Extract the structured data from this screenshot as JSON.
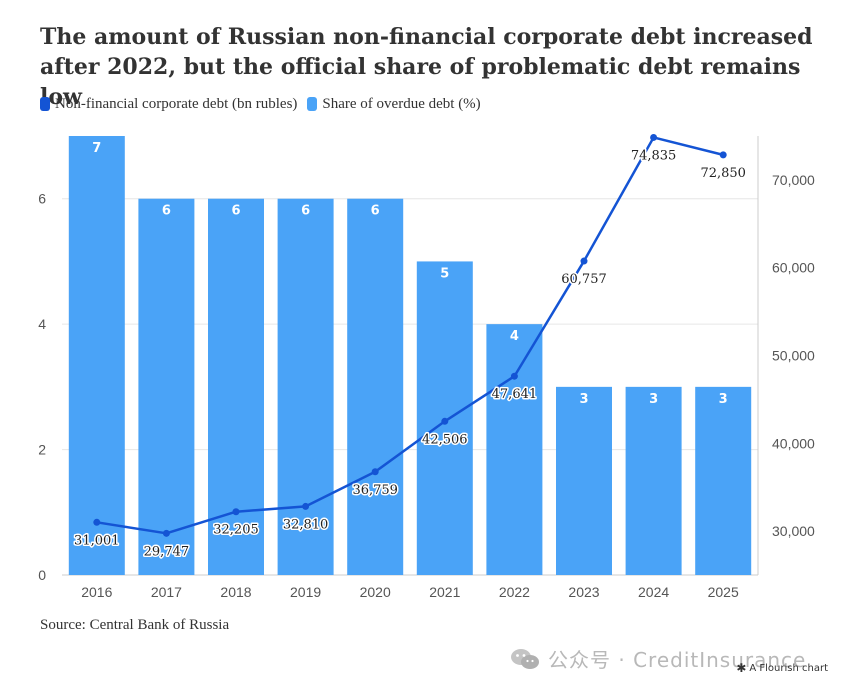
{
  "title": "The amount of Russian non-financial corporate debt increased after 2022, but the official share of problematic debt remains low",
  "source": "Source: Central Bank of Russia",
  "watermark": "公众号 · CreditInsurance",
  "credit": "A Flourish chart",
  "colors": {
    "line": "#1454d4",
    "bar": "#4aa3f7",
    "grid": "#e6e6e6"
  },
  "chart_data": {
    "type": "bar",
    "categories": [
      "2016",
      "2017",
      "2018",
      "2019",
      "2020",
      "2021",
      "2022",
      "2023",
      "2024",
      "2025"
    ],
    "series": [
      {
        "name": "Share of overdue debt (%)",
        "type": "bar",
        "axis": "left",
        "values": [
          7,
          6,
          6,
          6,
          6,
          5,
          4,
          3,
          3,
          3
        ],
        "labels": [
          "7",
          "6",
          "6",
          "6",
          "6",
          "5",
          "4",
          "3",
          "3",
          "3"
        ]
      },
      {
        "name": "Non-financial corporate debt (bn rubles)",
        "type": "line",
        "axis": "right",
        "values": [
          31001,
          29747,
          32205,
          32810,
          36759,
          42506,
          47641,
          60757,
          74835,
          72850
        ],
        "labels": [
          "31,001",
          "29,747",
          "32,205",
          "32,810",
          "36,759",
          "42,506",
          "47,641",
          "60,757",
          "74,835",
          "72,850"
        ]
      }
    ],
    "left_axis": {
      "ylim": [
        0,
        7
      ],
      "ticks": [
        "0",
        "2",
        "4",
        "6"
      ]
    },
    "right_axis": {
      "ylim": [
        25000,
        75000
      ],
      "ticks": [
        "30,000",
        "40,000",
        "50,000",
        "60,000",
        "70,000"
      ]
    },
    "legend_position": "top-left",
    "grid": true
  }
}
